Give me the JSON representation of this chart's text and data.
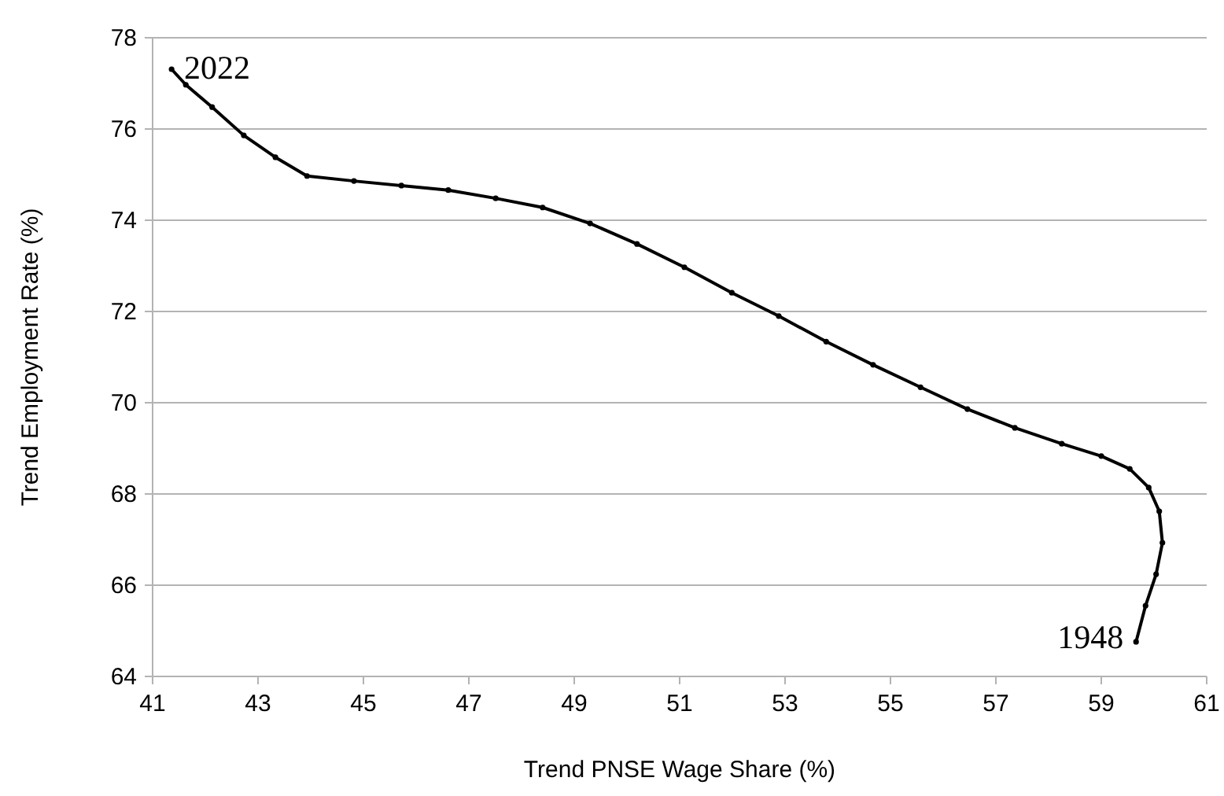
{
  "chart_data": {
    "type": "line",
    "xlabel": "Trend PNSE Wage Share (%)",
    "ylabel": "Trend Employment Rate (%)",
    "xlim": [
      41,
      61
    ],
    "xticks": [
      41,
      43,
      45,
      47,
      49,
      51,
      53,
      55,
      57,
      59,
      61
    ],
    "ylim": [
      64,
      78
    ],
    "yticks": [
      64,
      66,
      68,
      70,
      72,
      74,
      76,
      78
    ],
    "grid": "y",
    "marker": "circle",
    "line_style": "solid",
    "series": [
      {
        "color": "#000000",
        "x": [
          59.66,
          59.84,
          60.04,
          60.16,
          60.1,
          59.9,
          59.54,
          59.0,
          58.25,
          57.36,
          56.46,
          55.57,
          54.67,
          53.78,
          52.88,
          51.99,
          51.09,
          50.19,
          49.3,
          48.4,
          47.51,
          46.61,
          45.72,
          44.82,
          43.93,
          43.33,
          42.73,
          42.13,
          41.63,
          41.36
        ],
        "values": [
          64.76,
          65.55,
          66.24,
          66.93,
          67.62,
          68.14,
          68.55,
          68.83,
          69.1,
          69.45,
          69.86,
          70.34,
          70.83,
          71.34,
          71.9,
          72.41,
          72.97,
          73.48,
          73.93,
          74.28,
          74.48,
          74.66,
          74.76,
          74.86,
          74.97,
          75.38,
          75.86,
          76.48,
          76.97,
          77.31
        ]
      }
    ],
    "annotations": [
      {
        "text": "1948",
        "x": 59.66,
        "y": 64.76
      },
      {
        "text": "2022",
        "x": 41.36,
        "y": 77.31
      }
    ]
  }
}
